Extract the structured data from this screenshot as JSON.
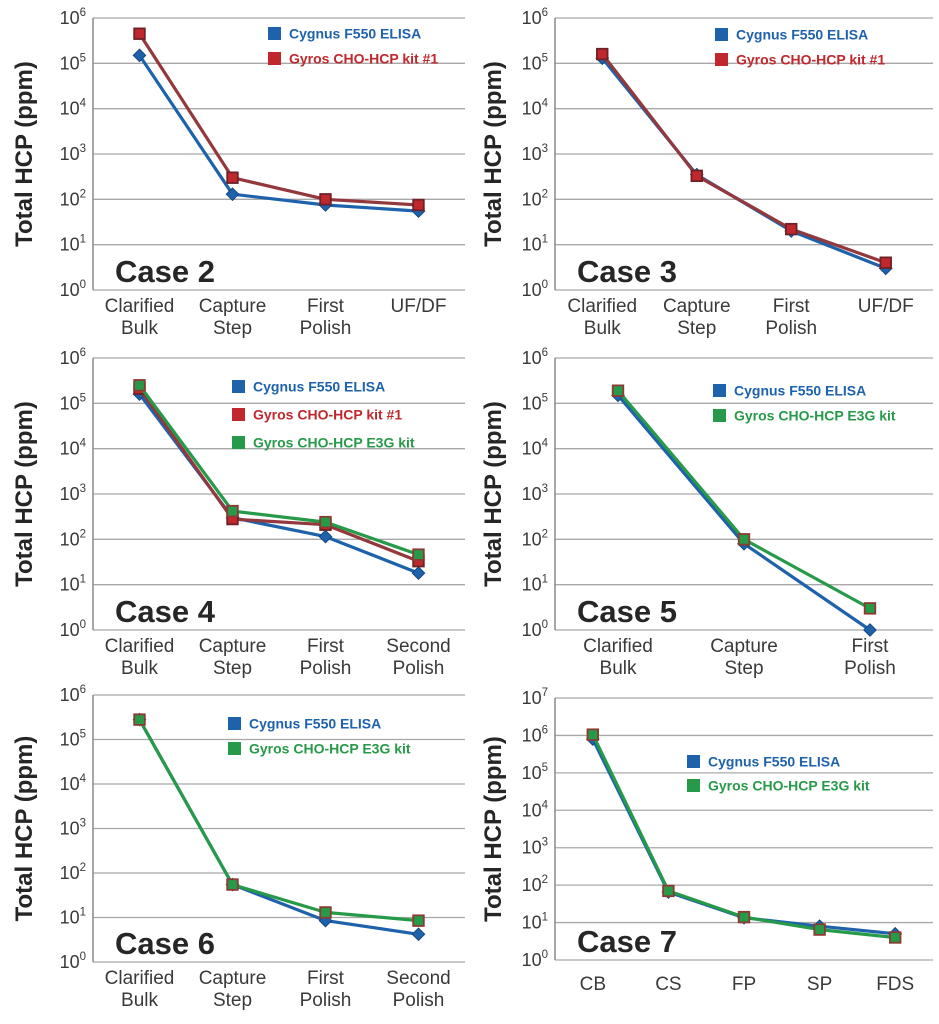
{
  "figure": {
    "y_axis_label": "Total HCP (ppm)"
  },
  "colors": {
    "blue": "#1E62AC",
    "blue_edge": "#16487F",
    "red": "#C0282E",
    "red_line": "#93383C",
    "red_edge": "#6E2227",
    "green": "#279A49",
    "green_edge": "#8C3B32",
    "grid": "#A8A8A8",
    "axis": "#8A8A8A",
    "tick_text": "#3A3A3A",
    "label_text": "#262626"
  },
  "chart_data": [
    {
      "type": "line",
      "title": "Case 2",
      "ylabel": "Total HCP (ppm)",
      "y_scale": "log",
      "ylim_exp": [
        0,
        6
      ],
      "grid": true,
      "legend_position": "top-right",
      "categories": [
        [
          "Clarified",
          "Bulk"
        ],
        [
          "Capture",
          "Step"
        ],
        [
          "First",
          "Polish"
        ],
        [
          "UF/DF"
        ]
      ],
      "series": [
        {
          "name": "Cygnus F550 ELISA",
          "color": "blue",
          "marker": "diamond",
          "values": [
            150000,
            130,
            75,
            55
          ]
        },
        {
          "name": "Gyros CHO-HCP kit #1",
          "color": "red",
          "marker": "square",
          "values": [
            450000,
            300,
            100,
            75
          ]
        }
      ]
    },
    {
      "type": "line",
      "title": "Case 3",
      "ylabel": "Total HCP (ppm)",
      "y_scale": "log",
      "ylim_exp": [
        0,
        6
      ],
      "grid": true,
      "legend_position": "top-right",
      "categories": [
        [
          "Clarified",
          "Bulk"
        ],
        [
          "Capture",
          "Step"
        ],
        [
          "First",
          "Polish"
        ],
        [
          "UF/DF"
        ]
      ],
      "series": [
        {
          "name": "Cygnus F550 ELISA",
          "color": "blue",
          "marker": "diamond",
          "values": [
            130000,
            350,
            20,
            3
          ]
        },
        {
          "name": "Gyros CHO-HCP kit #1",
          "color": "red",
          "marker": "square",
          "values": [
            160000,
            330,
            22,
            4
          ]
        }
      ]
    },
    {
      "type": "line",
      "title": "Case 4",
      "ylabel": "Total HCP (ppm)",
      "y_scale": "log",
      "ylim_exp": [
        0,
        6
      ],
      "grid": true,
      "legend_position": "top-right",
      "categories": [
        [
          "Clarified",
          "Bulk"
        ],
        [
          "Capture",
          "Step"
        ],
        [
          "First",
          "Polish"
        ],
        [
          "Second",
          "Polish"
        ]
      ],
      "series": [
        {
          "name": "Cygnus F550 ELISA",
          "color": "blue",
          "marker": "diamond",
          "values": [
            160000,
            300,
            115,
            18
          ]
        },
        {
          "name": "Gyros CHO-HCP kit #1",
          "color": "red",
          "marker": "square",
          "values": [
            210000,
            280,
            210,
            33
          ]
        },
        {
          "name": "Gyros CHO-HCP E3G kit",
          "color": "green",
          "marker": "square",
          "values": [
            250000,
            420,
            240,
            46
          ]
        }
      ]
    },
    {
      "type": "line",
      "title": "Case 5",
      "ylabel": "Total HCP (ppm)",
      "y_scale": "log",
      "ylim_exp": [
        0,
        6
      ],
      "grid": true,
      "legend_position": "top-right",
      "categories": [
        [
          "Clarified",
          "Bulk"
        ],
        [
          "Capture",
          "Step"
        ],
        [
          "First",
          "Polish"
        ]
      ],
      "series": [
        {
          "name": "Cygnus F550 ELISA",
          "color": "blue",
          "marker": "diamond",
          "values": [
            150000,
            80,
            1
          ]
        },
        {
          "name": "Gyros CHO-HCP E3G kit",
          "color": "green",
          "marker": "square",
          "values": [
            190000,
            100,
            3
          ]
        }
      ]
    },
    {
      "type": "line",
      "title": "Case 6",
      "ylabel": "Total HCP (ppm)",
      "y_scale": "log",
      "ylim_exp": [
        0,
        6
      ],
      "grid": true,
      "legend_position": "top-right",
      "categories": [
        [
          "Clarified",
          "Bulk"
        ],
        [
          "Capture",
          "Step"
        ],
        [
          "First",
          "Polish"
        ],
        [
          "Second",
          "Polish"
        ]
      ],
      "series": [
        {
          "name": "Cygnus F550 ELISA",
          "color": "blue",
          "marker": "diamond",
          "values": [
            280000,
            55,
            8.5,
            4.2
          ]
        },
        {
          "name": "Gyros CHO-HCP E3G kit",
          "color": "green",
          "marker": "square",
          "values": [
            280000,
            55,
            13,
            8.5
          ]
        }
      ]
    },
    {
      "type": "line",
      "title": "Case 7",
      "ylabel": "Total HCP (ppm)",
      "y_scale": "log",
      "ylim_exp": [
        0,
        7
      ],
      "grid": true,
      "legend_position": "middle-right",
      "categories": [
        [
          "CB"
        ],
        [
          "CS"
        ],
        [
          "FP"
        ],
        [
          "SP"
        ],
        [
          "FDS"
        ]
      ],
      "series": [
        {
          "name": "Cygnus F550 ELISA",
          "color": "blue",
          "marker": "diamond",
          "values": [
            800000,
            65,
            13.5,
            8,
            5
          ]
        },
        {
          "name": "Gyros CHO-HCP E3G kit",
          "color": "green",
          "marker": "square",
          "values": [
            1050000,
            70,
            14,
            6.5,
            4
          ]
        }
      ]
    }
  ]
}
